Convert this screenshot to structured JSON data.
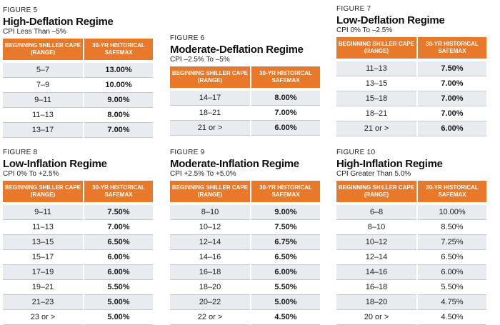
{
  "header": {
    "col1": "BEGINNING SHILLER CAPE (RANGE)",
    "col2": "30-YR HISTORICAL SAFEMAX"
  },
  "figures": [
    {
      "label": "FIGURE 5",
      "title": "High-Deflation Regime",
      "subtitle": "CPI Less Than –5%",
      "rows": [
        [
          "5–7",
          "13.00%"
        ],
        [
          "7–9",
          "10.00%"
        ],
        [
          "9–11",
          "9.00%"
        ],
        [
          "11–13",
          "8.00%"
        ],
        [
          "13–17",
          "7.00%"
        ]
      ]
    },
    {
      "label": "FIGURE 6",
      "title": "Moderate-Deflation Regime",
      "subtitle": "CPI –2.5% To –5%",
      "rows": [
        [
          "14–17",
          "8.00%"
        ],
        [
          "18–21",
          "7.00%"
        ],
        [
          "21 or >",
          "6.00%"
        ]
      ]
    },
    {
      "label": "FIGURE 7",
      "title": "Low-Deflation Regime",
      "subtitle": "CPI 0% To –2.5%",
      "rows": [
        [
          "11–13",
          "7.50%"
        ],
        [
          "13–15",
          "7.00%"
        ],
        [
          "15–18",
          "7.00%"
        ],
        [
          "18–21",
          "7.00%"
        ],
        [
          "21 or >",
          "6.00%"
        ]
      ]
    },
    {
      "label": "FIGURE 8",
      "title": "Low-Inflation Regime",
      "subtitle": "CPI 0% To +2.5%",
      "rows": [
        [
          "9–11",
          "7.50%"
        ],
        [
          "11–13",
          "7.00%"
        ],
        [
          "13–15",
          "6.50%"
        ],
        [
          "15–17",
          "6.00%"
        ],
        [
          "17–19",
          "6.00%"
        ],
        [
          "19–21",
          "5.50%"
        ],
        [
          "21–23",
          "5.00%"
        ],
        [
          "23 or >",
          "5.00%"
        ]
      ]
    },
    {
      "label": "FIGURE 9",
      "title": "Moderate-Inflation Regime",
      "subtitle": "CPI +2.5% To +5.0%",
      "rows": [
        [
          "8–10",
          "9.00%"
        ],
        [
          "10–12",
          "7.50%"
        ],
        [
          "12–14",
          "6.75%"
        ],
        [
          "14–16",
          "6.50%"
        ],
        [
          "16–18",
          "6.00%"
        ],
        [
          "18–20",
          "5.50%"
        ],
        [
          "20–22",
          "5.00%"
        ],
        [
          "22 or >",
          "4.50%"
        ]
      ]
    },
    {
      "label": "FIGURE 10",
      "title": "High-Inflation Regime",
      "subtitle": "CPI Greater Than 5.0%",
      "rows": [
        [
          "6–8",
          "10.00%"
        ],
        [
          "8–10",
          "8.50%"
        ],
        [
          "10–12",
          "7.25%"
        ],
        [
          "12–14",
          "6.50%"
        ],
        [
          "14–16",
          "6.00%"
        ],
        [
          "16–18",
          "5.50%"
        ],
        [
          "18–20",
          "4.75%"
        ],
        [
          "20 or >",
          "4.50%"
        ]
      ]
    }
  ]
}
